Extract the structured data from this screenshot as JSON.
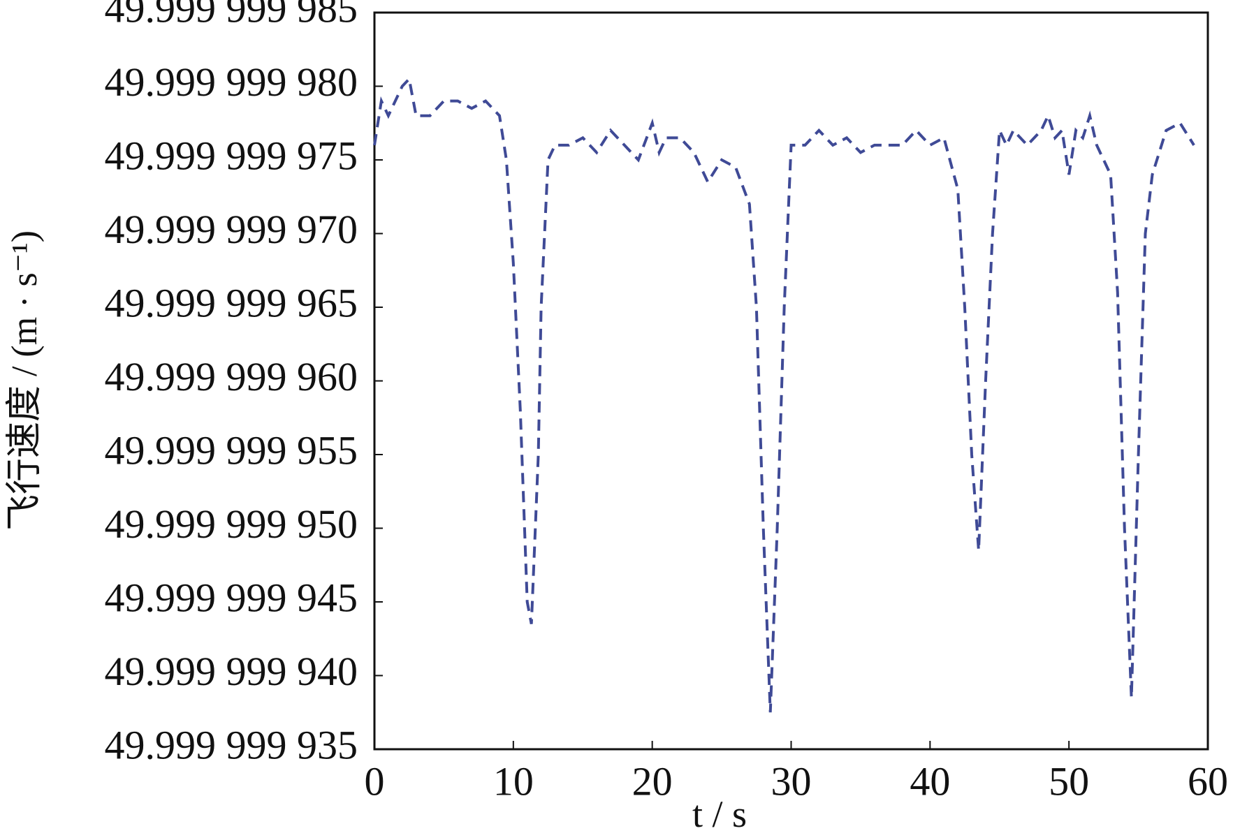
{
  "chart_data": {
    "type": "line",
    "x_label": "t / s",
    "y_label": "飞行速度 / (m · s⁻¹)",
    "xlim": [
      0,
      60
    ],
    "xticks": [
      0,
      10,
      20,
      30,
      40,
      50,
      60
    ],
    "ylim": [
      49.999999935,
      49.999999985
    ],
    "yticks": [
      {
        "value": 49.999999935,
        "label": "49.999 999 935"
      },
      {
        "value": 49.99999994,
        "label": "49.999 999 940"
      },
      {
        "value": 49.999999945,
        "label": "49.999 999 945"
      },
      {
        "value": 49.99999995,
        "label": "49.999 999 950"
      },
      {
        "value": 49.999999955,
        "label": "49.999 999 955"
      },
      {
        "value": 49.99999996,
        "label": "49.999 999 960"
      },
      {
        "value": 49.999999965,
        "label": "49.999 999 965"
      },
      {
        "value": 49.99999997,
        "label": "49.999 999 970"
      },
      {
        "value": 49.999999975,
        "label": "49.999 999 975"
      },
      {
        "value": 49.99999998,
        "label": "49.999 999 980"
      },
      {
        "value": 49.999999985,
        "label": "49.999 999 985"
      }
    ],
    "grid": false,
    "x": [
      0,
      0.5,
      1,
      2,
      2.5,
      3,
      4,
      5,
      6,
      7,
      8,
      9,
      9.5,
      10,
      10.5,
      11,
      11.3,
      11.8,
      12,
      12.5,
      13,
      14,
      15,
      16,
      17,
      18,
      19,
      20,
      20.5,
      21,
      22,
      23,
      24,
      25,
      26,
      27,
      27.5,
      28,
      28.5,
      29,
      29.5,
      30,
      31,
      32,
      33,
      34,
      35,
      36,
      37,
      38,
      39,
      40,
      41,
      42,
      42.5,
      43,
      43.5,
      44,
      44.5,
      45,
      45.5,
      46,
      47,
      48,
      48.5,
      49,
      49.5,
      50,
      50.5,
      51,
      51.5,
      52,
      53,
      53.5,
      54,
      54.5,
      55,
      55.5,
      56,
      57,
      58,
      59
    ],
    "series": [
      {
        "color": "#3f4a96",
        "values": [
          49.999999976,
          49.999999979,
          49.999999978,
          49.99999998,
          49.9999999805,
          49.999999978,
          49.999999978,
          49.999999979,
          49.999999979,
          49.9999999785,
          49.999999979,
          49.999999978,
          49.999999975,
          49.999999968,
          49.999999958,
          49.999999945,
          49.9999999435,
          49.999999955,
          49.999999965,
          49.999999975,
          49.999999976,
          49.999999976,
          49.9999999765,
          49.9999999755,
          49.999999977,
          49.999999976,
          49.999999975,
          49.9999999775,
          49.9999999755,
          49.9999999765,
          49.9999999765,
          49.9999999755,
          49.9999999735,
          49.999999975,
          49.9999999745,
          49.999999972,
          49.999999965,
          49.99999995,
          49.9999999375,
          49.99999995,
          49.999999965,
          49.999999976,
          49.999999976,
          49.999999977,
          49.999999976,
          49.9999999765,
          49.9999999755,
          49.999999976,
          49.999999976,
          49.999999976,
          49.999999977,
          49.999999976,
          49.9999999765,
          49.999999973,
          49.999999965,
          49.999999955,
          49.9999999485,
          49.99999996,
          49.99999997,
          49.999999977,
          49.999999976,
          49.999999977,
          49.999999976,
          49.999999977,
          49.999999978,
          49.9999999765,
          49.999999977,
          49.999999974,
          49.999999977,
          49.9999999765,
          49.999999978,
          49.999999976,
          49.999999974,
          49.999999966,
          49.99999995,
          49.9999999385,
          49.999999955,
          49.99999997,
          49.999999974,
          49.999999977,
          49.9999999775,
          49.999999976
        ]
      }
    ]
  }
}
